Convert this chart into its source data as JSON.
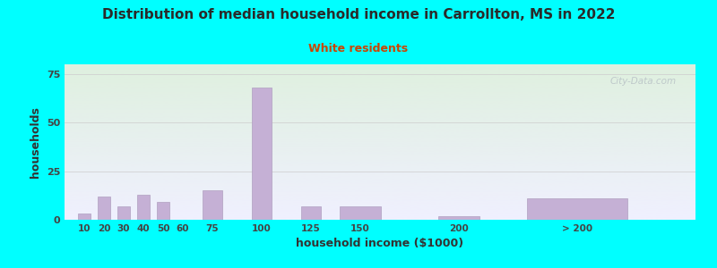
{
  "title": "Distribution of median household income in Carrollton, MS in 2022",
  "subtitle": "White residents",
  "xlabel": "household income ($1000)",
  "ylabel": "households",
  "background_color": "#00FFFF",
  "plot_bg_top": "#dff0df",
  "plot_bg_bottom": "#f0f0ff",
  "bar_color": "#C5B0D5",
  "bar_edge_color": "#B0A0C0",
  "title_color": "#2a2a2a",
  "subtitle_color": "#CC4400",
  "axis_label_color": "#333333",
  "tick_label_color": "#444444",
  "categories": [
    "10",
    "20",
    "30",
    "40",
    "50",
    "60",
    "75",
    "100",
    "125",
    "150",
    "200",
    "> 200"
  ],
  "values": [
    3,
    12,
    7,
    13,
    9,
    0,
    15,
    68,
    7,
    7,
    2,
    11
  ],
  "bar_widths": [
    7,
    7,
    7,
    7,
    7,
    7,
    12,
    12,
    12,
    25,
    25,
    60
  ],
  "bar_centers": [
    10,
    20,
    30,
    40,
    50,
    60,
    75,
    100,
    125,
    150,
    200,
    260
  ],
  "ylim": [
    0,
    80
  ],
  "yticks": [
    0,
    25,
    50,
    75
  ],
  "grid_color": "#cccccc",
  "watermark_text": "City-Data.com"
}
